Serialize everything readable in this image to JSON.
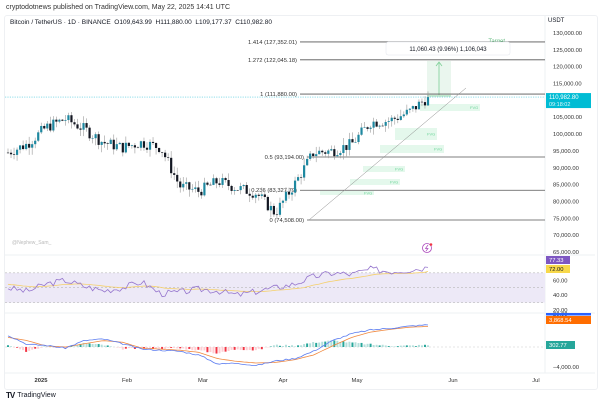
{
  "header": {
    "published": "cryptodotnews published on TradingView.com, May 22, 2025 14:41 UTC",
    "symbol": "Bitcoin / TetherUS · 1D · BINANCE",
    "open": "O109,643.99",
    "high": "H111,880.00",
    "low": "L109,177.37",
    "close": "C110,982.80",
    "currency": "USDT"
  },
  "watermark": "@Nephew_Sam_",
  "footer": {
    "logo": "TV",
    "brand": "TradingView"
  },
  "measure_tooltip": "11,060.43 (9.96%) 1,106,043",
  "target_label": "Target",
  "fvg_label": "FVG",
  "price_badge": {
    "price": "110,982.80",
    "countdown": "09:18:02",
    "color": "#00bcd4"
  },
  "rsi_badges": {
    "rsi": "77.33",
    "rsi_color": "#7e57c2",
    "ma": "72.00",
    "ma_color": "#f7d84a"
  },
  "macd_badges": {
    "signal": "3,868.54",
    "signal_color": "#ff6d00",
    "hist": "302.77",
    "hist_color": "#26a69a",
    "macd_color": "#2962ff"
  },
  "colors": {
    "up": "#1e88a0",
    "down": "#131722",
    "fib_line": "#555555",
    "fvg_fill": "#e4f8ec",
    "rsi_line": "#9575cd",
    "rsi_ma": "#f5d06a",
    "rsi_band": "#ede9f7",
    "macd_line": "#5b7cf0",
    "signal_line": "#f0883e"
  },
  "chart_data": [
    {
      "type": "candlestick",
      "title": "Bitcoin / TetherUS · 1D · BINANCE",
      "ylabel": "USDT",
      "ylim": [
        65000,
        130000
      ],
      "y_ticks": [
        130000,
        125000,
        120000,
        115000,
        110000,
        105000,
        100000,
        95000,
        90000,
        85000,
        80000,
        75000,
        70000,
        65000
      ],
      "y_tick_labels": [
        "130,000.00",
        "125,000.00",
        "120,000.00",
        "115,000.00",
        "110,982.80",
        "105,000.00",
        "100,000.00",
        "95,000.00",
        "90,000.00",
        "85,000.00",
        "80,000.00",
        "75,000.00",
        "70,000.00",
        "65,000.00"
      ],
      "x_tick_labels": [
        "2025",
        "Feb",
        "Mar",
        "Apr",
        "May",
        "Jun",
        "Jul"
      ],
      "last": {
        "open": 109643.99,
        "high": 111880.0,
        "low": 109177.37,
        "close": 110982.8
      },
      "fib_levels": [
        {
          "ratio": "1.414",
          "price": 127352.01,
          "label": "1.414 (127,352.01)"
        },
        {
          "ratio": "1.272",
          "price": 122045.18,
          "label": "1.272 (122,045.18)"
        },
        {
          "ratio": "1",
          "price": 111880.0,
          "label": "1 (111,880.00)"
        },
        {
          "ratio": "0.5",
          "price": 93194.0,
          "label": "0.5 (93,194.00)"
        },
        {
          "ratio": "0.236",
          "price": 83327.79,
          "label": "0.236 (83,327.79)"
        },
        {
          "ratio": "0",
          "price": 74508.0,
          "label": "0 (74,508.00)"
        }
      ],
      "annotations": [
        "Target",
        "FVG",
        "FVG",
        "FVG",
        "FVG",
        "FVG",
        "11,060.43 (9.96%) 1,106,043"
      ],
      "approx_closes_weekly": [
        94500,
        97000,
        102000,
        104500,
        101500,
        97500,
        96000,
        97500,
        96000,
        84500,
        83000,
        86000,
        84000,
        82500,
        76500,
        85000,
        94500,
        95000,
        97000,
        103500,
        104000,
        106500,
        110900
      ]
    },
    {
      "type": "line",
      "title": "RSI",
      "ylim": [
        20,
        90
      ],
      "y_ticks": [
        60,
        40,
        20
      ],
      "band": [
        30,
        70
      ],
      "series": [
        {
          "name": "RSI",
          "last": 77.33
        },
        {
          "name": "RSI MA",
          "last": 72.0
        }
      ]
    },
    {
      "type": "bar+line",
      "title": "MACD",
      "y_ticks": [
        -4000
      ],
      "series": [
        {
          "name": "MACD",
          "last": 4171.31
        },
        {
          "name": "Signal",
          "last": 3868.54
        },
        {
          "name": "Histogram",
          "last": 302.77
        }
      ]
    }
  ],
  "rsi_axis": [
    "60.00",
    "40.00",
    "20.00"
  ],
  "macd_axis": [
    "−4,000.00"
  ]
}
